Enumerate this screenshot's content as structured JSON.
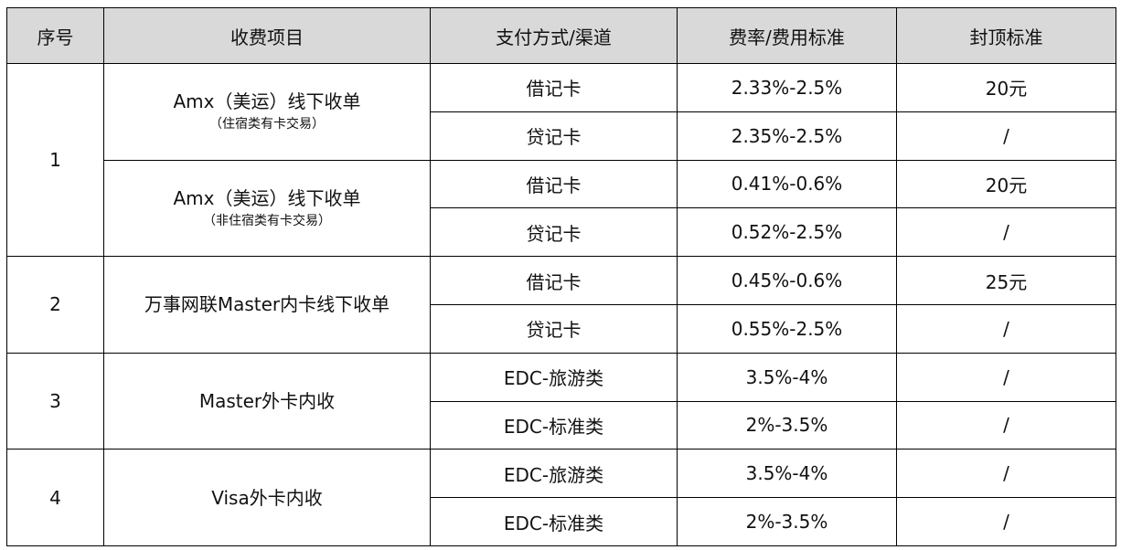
{
  "headers": [
    "序号",
    "收费项目",
    "支付方式/渠道",
    "费率/费用标准",
    "封顶标准"
  ],
  "groups": [
    {
      "no": "1",
      "items": [
        {
          "name": "Amx（美运）线下收单",
          "note": "（住宿类有卡交易）",
          "rows": [
            {
              "channel": "借记卡",
              "rate": "2.33%-2.5%",
              "cap": "20元"
            },
            {
              "channel": "贷记卡",
              "rate": "2.35%-2.5%",
              "cap": "/"
            }
          ]
        },
        {
          "name": "Amx（美运）线下收单",
          "note": "（非住宿类有卡交易）",
          "rows": [
            {
              "channel": "借记卡",
              "rate": "0.41%-0.6%",
              "cap": "20元"
            },
            {
              "channel": "贷记卡",
              "rate": "0.52%-2.5%",
              "cap": "/"
            }
          ]
        }
      ]
    },
    {
      "no": "2",
      "items": [
        {
          "name": "万事网联Master内卡线下收单",
          "rows": [
            {
              "channel": "借记卡",
              "rate": "0.45%-0.6%",
              "cap": "25元"
            },
            {
              "channel": "贷记卡",
              "rate": "0.55%-2.5%",
              "cap": "/"
            }
          ]
        }
      ]
    },
    {
      "no": "3",
      "items": [
        {
          "name": "Master外卡内收",
          "rows": [
            {
              "channel": "EDC-旅游类",
              "rate": "3.5%-4%",
              "cap": "/"
            },
            {
              "channel": "EDC-标准类",
              "rate": "2%-3.5%",
              "cap": "/"
            }
          ]
        }
      ]
    },
    {
      "no": "4",
      "items": [
        {
          "name": "Visa外卡内收",
          "rows": [
            {
              "channel": "EDC-旅游类",
              "rate": "3.5%-4%",
              "cap": "/"
            },
            {
              "channel": "EDC-标准类",
              "rate": "2%-3.5%",
              "cap": "/"
            }
          ]
        }
      ]
    }
  ]
}
